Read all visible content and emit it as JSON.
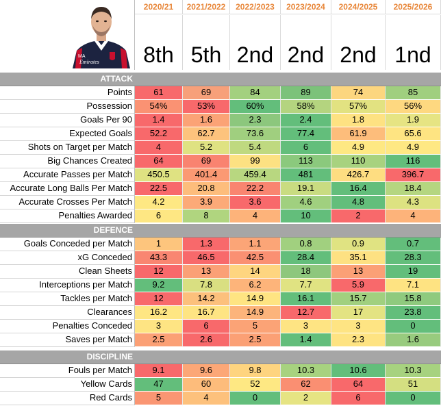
{
  "years": [
    "2020/21",
    "2021/2022",
    "2022/2023",
    "2023/2024",
    "2024/2025",
    "2025/2026"
  ],
  "positions": [
    "8th",
    "5th",
    "2nd",
    "2nd",
    "2nd",
    "1nd"
  ],
  "avatar": {
    "logo_text": "Emirates",
    "badge_text": "MA"
  },
  "sections": [
    {
      "title": "ATTACK",
      "rows": [
        {
          "label": "Points",
          "values": [
            "61",
            "69",
            "84",
            "89",
            "74",
            "85"
          ],
          "colors": [
            "#f8696b",
            "#f7a07a",
            "#a3d07f",
            "#7cc27a",
            "#fcd67f",
            "#a0cf7f"
          ]
        },
        {
          "label": "Possession",
          "values": [
            "54%",
            "53%",
            "60%",
            "58%",
            "57%",
            "56%"
          ],
          "colors": [
            "#fa9273",
            "#f8696b",
            "#63be7b",
            "#b4d47f",
            "#e2e281",
            "#fed880"
          ]
        },
        {
          "label": "Goals Per 90",
          "values": [
            "1.4",
            "1.6",
            "2.3",
            "2.4",
            "1.8",
            "1.9"
          ],
          "colors": [
            "#f8696b",
            "#fba376",
            "#8cc77d",
            "#63be7b",
            "#fee282",
            "#e6e483"
          ]
        },
        {
          "label": "Expected Goals",
          "values": [
            "52.2",
            "62.7",
            "73.6",
            "77.4",
            "61.9",
            "65.6"
          ],
          "colors": [
            "#f8696b",
            "#fdc37d",
            "#a0cf7f",
            "#63be7b",
            "#fdbd7b",
            "#fee482"
          ]
        },
        {
          "label": "Shots on Target per Match",
          "values": [
            "4",
            "5.2",
            "5.4",
            "6",
            "4.9",
            "4.9"
          ],
          "colors": [
            "#f8696b",
            "#dfe282",
            "#bfd980",
            "#63be7b",
            "#fee883",
            "#fee883"
          ]
        },
        {
          "label": "Big Chances Created",
          "values": [
            "64",
            "69",
            "99",
            "113",
            "110",
            "116"
          ],
          "colors": [
            "#f8696b",
            "#f98370",
            "#fde182",
            "#8bc97d",
            "#a8d27f",
            "#63be7b"
          ]
        },
        {
          "label": "Accurate Passes per Match",
          "values": [
            "450.5",
            "401.4",
            "459.4",
            "481",
            "426.7",
            "396.7"
          ],
          "colors": [
            "#dfe282",
            "#fb9973",
            "#b8d780",
            "#63be7b",
            "#fedd81",
            "#f8696b"
          ]
        },
        {
          "label": "Accurate Long Balls Per Match",
          "values": [
            "22.5",
            "20.8",
            "22.2",
            "19.1",
            "16.4",
            "18.4"
          ],
          "colors": [
            "#f8696b",
            "#fdbd7c",
            "#f98570",
            "#c9dc81",
            "#63be7b",
            "#b5d680"
          ]
        },
        {
          "label": "Accurate Crosses Per Match",
          "values": [
            "4.2",
            "3.9",
            "3.6",
            "4.6",
            "4.8",
            "4.3"
          ],
          "colors": [
            "#fee883",
            "#fcaa78",
            "#f8696b",
            "#a0d07f",
            "#63be7b",
            "#dde281"
          ]
        },
        {
          "label": "Penalties Awarded",
          "values": [
            "6",
            "8",
            "4",
            "10",
            "2",
            "4"
          ],
          "colors": [
            "#fee783",
            "#b0d57f",
            "#fdb37a",
            "#63be7b",
            "#f8696b",
            "#fdb37a"
          ]
        }
      ]
    },
    {
      "title": "DEFENCE",
      "rows": [
        {
          "label": "Goals Conceded per Match",
          "values": [
            "1",
            "1.3",
            "1.1",
            "0.8",
            "0.9",
            "0.7"
          ],
          "colors": [
            "#fdc57d",
            "#f8696b",
            "#fba577",
            "#a1d07f",
            "#e0e382",
            "#63be7b"
          ]
        },
        {
          "label": "xG Conceded",
          "values": [
            "43.3",
            "46.5",
            "42.5",
            "28.4",
            "35.1",
            "28.3"
          ],
          "colors": [
            "#f98671",
            "#f8696b",
            "#fa9072",
            "#63be7b",
            "#fde182",
            "#63be7b"
          ]
        },
        {
          "label": "Clean Sheets",
          "values": [
            "12",
            "13",
            "14",
            "18",
            "13",
            "19"
          ],
          "colors": [
            "#f8696b",
            "#fba076",
            "#fed580",
            "#8ec77d",
            "#fba076",
            "#63be7b"
          ]
        },
        {
          "label": "Interceptions per Match",
          "values": [
            "9.2",
            "7.8",
            "6.2",
            "7.7",
            "5.9",
            "7.1"
          ],
          "colors": [
            "#63be7b",
            "#d9df81",
            "#fdb47a",
            "#e0e382",
            "#f8696b",
            "#fee382"
          ]
        },
        {
          "label": "Tackles per Match",
          "values": [
            "12",
            "14.2",
            "14.9",
            "16.1",
            "15.7",
            "15.8"
          ],
          "colors": [
            "#f8696b",
            "#fcc07c",
            "#fee482",
            "#63be7b",
            "#a1d07f",
            "#8fca7e"
          ]
        },
        {
          "label": "Clearances",
          "values": [
            "16.2",
            "16.7",
            "14.9",
            "12.7",
            "17",
            "23.8"
          ],
          "colors": [
            "#fee683",
            "#fee483",
            "#fcb47b",
            "#f8696b",
            "#e3e382",
            "#63be7b"
          ]
        },
        {
          "label": "Penalties Conceded",
          "values": [
            "3",
            "6",
            "5",
            "3",
            "3",
            "0"
          ],
          "colors": [
            "#fee483",
            "#f8696b",
            "#fba376",
            "#fee483",
            "#fee483",
            "#63be7b"
          ]
        },
        {
          "label": "Saves per Match",
          "values": [
            "2.5",
            "2.6",
            "2.5",
            "1.4",
            "2.3",
            "1.6"
          ],
          "colors": [
            "#fba075",
            "#f8696b",
            "#fba075",
            "#63be7b",
            "#fee382",
            "#98cb7e"
          ]
        }
      ]
    },
    {
      "title": "DISCIPLINE",
      "rows": [
        {
          "label": "Fouls per Match",
          "values": [
            "9.1",
            "9.6",
            "9.8",
            "10.3",
            "10.6",
            "10.3"
          ],
          "colors": [
            "#f8696b",
            "#fca777",
            "#fed47f",
            "#a7d27f",
            "#63be7b",
            "#a7d27f"
          ]
        },
        {
          "label": "Yellow Cards",
          "values": [
            "47",
            "60",
            "52",
            "62",
            "64",
            "51"
          ],
          "colors": [
            "#63be7b",
            "#fdbc7b",
            "#fee883",
            "#fa8f72",
            "#f8696b",
            "#d4df81"
          ]
        },
        {
          "label": "Red Cards",
          "values": [
            "5",
            "4",
            "0",
            "2",
            "6",
            "0"
          ],
          "colors": [
            "#fa9673",
            "#fdc17c",
            "#63be7b",
            "#e6e483",
            "#f8696b",
            "#63be7b"
          ]
        }
      ]
    }
  ]
}
